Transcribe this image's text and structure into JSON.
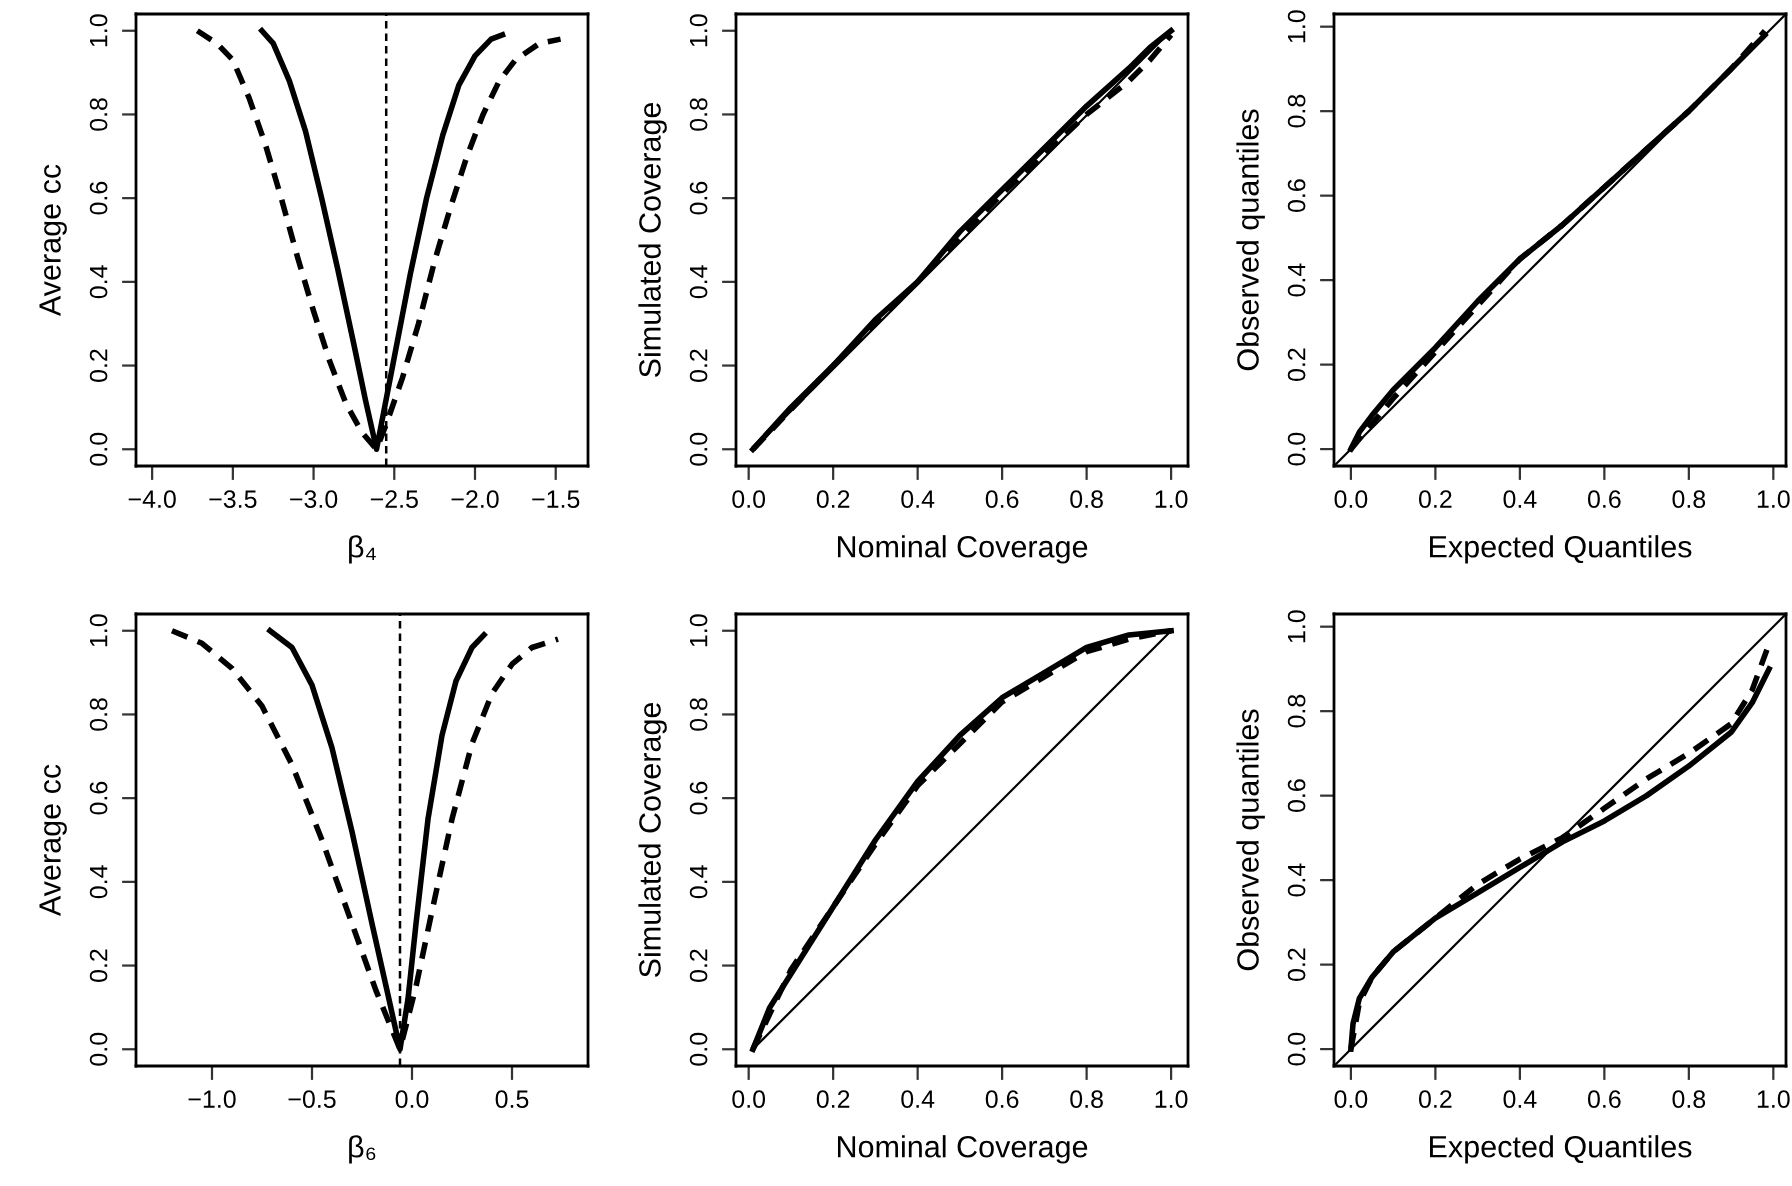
{
  "chart_data": [
    {
      "type": "line",
      "xlabel": "β₄",
      "ylabel": "Average cc",
      "xlim": [
        -4.1,
        -1.3
      ],
      "ylim": [
        -0.04,
        1.04
      ],
      "xticks": [
        {
          "value": -4.0,
          "label": "−4.0"
        },
        {
          "value": -3.5,
          "label": "−3.5"
        },
        {
          "value": -3.0,
          "label": "−3.0"
        },
        {
          "value": -2.5,
          "label": "−2.5"
        },
        {
          "value": -2.0,
          "label": "−2.0"
        },
        {
          "value": -1.5,
          "label": "−1.5"
        }
      ],
      "yticks": [
        {
          "value": 0,
          "label": "0.0"
        },
        {
          "value": 0.2,
          "label": "0.2"
        },
        {
          "value": 0.4,
          "label": "0.4"
        },
        {
          "value": 0.6,
          "label": "0.6"
        },
        {
          "value": 0.8,
          "label": "0.8"
        },
        {
          "value": 1,
          "label": "1.0"
        }
      ],
      "grid": false,
      "ref_lines": [
        {
          "axis": "x",
          "value": -2.55,
          "line_style": "dashed",
          "color": "#000000"
        }
      ],
      "series": [
        {
          "color": "#000000",
          "line_style": "solid",
          "x": [
            -3.32,
            -3.25,
            -3.15,
            -3.05,
            -2.95,
            -2.85,
            -2.75,
            -2.68,
            -2.61,
            -2.57,
            -2.5,
            -2.4,
            -2.3,
            -2.2,
            -2.1,
            -2.0,
            -1.9,
            -1.83
          ],
          "values": [
            1.0,
            0.97,
            0.88,
            0.76,
            0.6,
            0.43,
            0.25,
            0.12,
            0.0,
            0.08,
            0.22,
            0.42,
            0.6,
            0.75,
            0.87,
            0.94,
            0.98,
            0.99
          ]
        },
        {
          "color": "#000000",
          "line_style": "dashed",
          "x": [
            -3.72,
            -3.6,
            -3.5,
            -3.4,
            -3.3,
            -3.2,
            -3.1,
            -3.0,
            -2.9,
            -2.8,
            -2.7,
            -2.61,
            -2.55,
            -2.45,
            -2.35,
            -2.25,
            -2.15,
            -2.05,
            -1.95,
            -1.85,
            -1.75,
            -1.6,
            -1.47
          ],
          "values": [
            1.0,
            0.97,
            0.93,
            0.84,
            0.73,
            0.6,
            0.46,
            0.33,
            0.21,
            0.11,
            0.04,
            0.0,
            0.06,
            0.17,
            0.3,
            0.45,
            0.58,
            0.7,
            0.8,
            0.88,
            0.93,
            0.97,
            0.98
          ]
        }
      ]
    },
    {
      "type": "line",
      "xlabel": "Nominal Coverage",
      "ylabel": "Simulated Coverage",
      "xlim": [
        -0.03,
        1.04
      ],
      "ylim": [
        -0.04,
        1.04
      ],
      "xticks": [
        {
          "value": 0,
          "label": "0.0"
        },
        {
          "value": 0.2,
          "label": "0.2"
        },
        {
          "value": 0.4,
          "label": "0.4"
        },
        {
          "value": 0.6,
          "label": "0.6"
        },
        {
          "value": 0.8,
          "label": "0.8"
        },
        {
          "value": 1,
          "label": "1.0"
        }
      ],
      "yticks": [
        {
          "value": 0,
          "label": "0.0"
        },
        {
          "value": 0.2,
          "label": "0.2"
        },
        {
          "value": 0.4,
          "label": "0.4"
        },
        {
          "value": 0.6,
          "label": "0.6"
        },
        {
          "value": 0.8,
          "label": "0.8"
        },
        {
          "value": 1,
          "label": "1.0"
        }
      ],
      "grid": false,
      "series": [
        {
          "color": "#000000",
          "line_style": "solid",
          "x": [
            0.01,
            0.1,
            0.2,
            0.3,
            0.4,
            0.5,
            0.6,
            0.7,
            0.8,
            0.9,
            0.95,
            1.0
          ],
          "values": [
            0.0,
            0.1,
            0.2,
            0.31,
            0.4,
            0.52,
            0.62,
            0.72,
            0.82,
            0.91,
            0.96,
            1.0
          ]
        },
        {
          "color": "#000000",
          "line_style": "dashed",
          "x": [
            0.01,
            0.2,
            0.4,
            0.6,
            0.8,
            0.9,
            0.95,
            1.0
          ],
          "values": [
            0.0,
            0.2,
            0.4,
            0.61,
            0.8,
            0.88,
            0.93,
            0.99
          ]
        },
        {
          "color": "#000000",
          "line_style": "solid",
          "x": [
            0.01,
            1.0
          ],
          "values": [
            0.0,
            1.0
          ]
        }
      ]
    },
    {
      "type": "line",
      "xlabel": "Expected Quantiles",
      "ylabel": "Observed quantiles",
      "xlim": [
        -0.04,
        1.03
      ],
      "ylim": [
        -0.04,
        1.03
      ],
      "xticks": [
        {
          "value": 0,
          "label": "0.0"
        },
        {
          "value": 0.2,
          "label": "0.2"
        },
        {
          "value": 0.4,
          "label": "0.4"
        },
        {
          "value": 0.6,
          "label": "0.6"
        },
        {
          "value": 0.8,
          "label": "0.8"
        },
        {
          "value": 1,
          "label": "1.0"
        }
      ],
      "yticks": [
        {
          "value": 0,
          "label": "0.0"
        },
        {
          "value": 0.2,
          "label": "0.2"
        },
        {
          "value": 0.4,
          "label": "0.4"
        },
        {
          "value": 0.6,
          "label": "0.6"
        },
        {
          "value": 0.8,
          "label": "0.8"
        },
        {
          "value": 1,
          "label": "1.0"
        }
      ],
      "grid": false,
      "series": [
        {
          "color": "#000000",
          "line_style": "solid",
          "x": [
            0.0,
            0.02,
            0.05,
            0.1,
            0.2,
            0.3,
            0.4,
            0.5,
            0.6,
            0.7,
            0.8,
            0.9,
            0.98
          ],
          "values": [
            0.0,
            0.04,
            0.08,
            0.14,
            0.24,
            0.35,
            0.45,
            0.53,
            0.62,
            0.71,
            0.8,
            0.9,
            0.98
          ]
        },
        {
          "color": "#000000",
          "line_style": "dashed",
          "x": [
            0.0,
            0.05,
            0.1,
            0.2,
            0.3,
            0.4,
            0.5,
            0.6,
            0.7,
            0.8,
            0.9,
            0.98
          ],
          "values": [
            0.0,
            0.06,
            0.12,
            0.23,
            0.34,
            0.45,
            0.53,
            0.62,
            0.71,
            0.8,
            0.9,
            0.99
          ]
        },
        {
          "color": "#000000",
          "line_style": "solid",
          "x": [
            -0.04,
            1.03
          ],
          "values": [
            -0.04,
            1.03
          ]
        }
      ]
    },
    {
      "type": "line",
      "xlabel": "β₆",
      "ylabel": "Average cc",
      "xlim": [
        -1.38,
        0.88
      ],
      "ylim": [
        -0.04,
        1.04
      ],
      "xticks": [
        {
          "value": -1.0,
          "label": "−1.0"
        },
        {
          "value": -0.5,
          "label": "−0.5"
        },
        {
          "value": 0.0,
          "label": "0.0"
        },
        {
          "value": 0.5,
          "label": "0.5"
        }
      ],
      "yticks": [
        {
          "value": 0,
          "label": "0.0"
        },
        {
          "value": 0.2,
          "label": "0.2"
        },
        {
          "value": 0.4,
          "label": "0.4"
        },
        {
          "value": 0.6,
          "label": "0.6"
        },
        {
          "value": 0.8,
          "label": "0.8"
        },
        {
          "value": 1,
          "label": "1.0"
        }
      ],
      "grid": false,
      "ref_lines": [
        {
          "axis": "x",
          "value": -0.06,
          "line_style": "dashed",
          "color": "#000000"
        }
      ],
      "series": [
        {
          "color": "#000000",
          "line_style": "solid",
          "x": [
            -0.71,
            -0.6,
            -0.5,
            -0.4,
            -0.3,
            -0.2,
            -0.12,
            -0.06,
            -0.02,
            0.02,
            0.08,
            0.15,
            0.22,
            0.3,
            0.36
          ],
          "values": [
            1.0,
            0.96,
            0.87,
            0.72,
            0.52,
            0.3,
            0.13,
            0.0,
            0.12,
            0.3,
            0.55,
            0.75,
            0.88,
            0.96,
            0.99
          ]
        },
        {
          "color": "#000000",
          "line_style": "dashed",
          "x": [
            -1.2,
            -1.05,
            -0.9,
            -0.75,
            -0.6,
            -0.45,
            -0.3,
            -0.18,
            -0.06,
            0.02,
            0.1,
            0.2,
            0.3,
            0.4,
            0.5,
            0.6,
            0.73
          ],
          "values": [
            1.0,
            0.97,
            0.91,
            0.82,
            0.68,
            0.5,
            0.3,
            0.14,
            0.0,
            0.15,
            0.33,
            0.55,
            0.73,
            0.85,
            0.92,
            0.96,
            0.98
          ]
        }
      ]
    },
    {
      "type": "line",
      "xlabel": "Nominal Coverage",
      "ylabel": "Simulated Coverage",
      "xlim": [
        -0.03,
        1.04
      ],
      "ylim": [
        -0.04,
        1.04
      ],
      "xticks": [
        {
          "value": 0,
          "label": "0.0"
        },
        {
          "value": 0.2,
          "label": "0.2"
        },
        {
          "value": 0.4,
          "label": "0.4"
        },
        {
          "value": 0.6,
          "label": "0.6"
        },
        {
          "value": 0.8,
          "label": "0.8"
        },
        {
          "value": 1,
          "label": "1.0"
        }
      ],
      "yticks": [
        {
          "value": 0,
          "label": "0.0"
        },
        {
          "value": 0.2,
          "label": "0.2"
        },
        {
          "value": 0.4,
          "label": "0.4"
        },
        {
          "value": 0.6,
          "label": "0.6"
        },
        {
          "value": 0.8,
          "label": "0.8"
        },
        {
          "value": 1,
          "label": "1.0"
        }
      ],
      "grid": false,
      "series": [
        {
          "color": "#000000",
          "line_style": "solid",
          "x": [
            0.01,
            0.05,
            0.1,
            0.2,
            0.3,
            0.4,
            0.5,
            0.6,
            0.7,
            0.8,
            0.9,
            1.0
          ],
          "values": [
            0.0,
            0.1,
            0.18,
            0.34,
            0.5,
            0.64,
            0.75,
            0.84,
            0.9,
            0.96,
            0.99,
            1.0
          ]
        },
        {
          "color": "#000000",
          "line_style": "dashed",
          "x": [
            0.01,
            0.1,
            0.2,
            0.3,
            0.4,
            0.5,
            0.6,
            0.7,
            0.8,
            0.9,
            1.0
          ],
          "values": [
            0.0,
            0.19,
            0.34,
            0.49,
            0.63,
            0.73,
            0.83,
            0.89,
            0.95,
            0.98,
            1.0
          ]
        },
        {
          "color": "#000000",
          "line_style": "solid",
          "x": [
            0.01,
            1.0
          ],
          "values": [
            0.0,
            1.0
          ]
        }
      ]
    },
    {
      "type": "line",
      "xlabel": "Expected Quantiles",
      "ylabel": "Observed quantiles",
      "xlim": [
        -0.04,
        1.03
      ],
      "ylim": [
        -0.04,
        1.03
      ],
      "xticks": [
        {
          "value": 0,
          "label": "0.0"
        },
        {
          "value": 0.2,
          "label": "0.2"
        },
        {
          "value": 0.4,
          "label": "0.4"
        },
        {
          "value": 0.6,
          "label": "0.6"
        },
        {
          "value": 0.8,
          "label": "0.8"
        },
        {
          "value": 1,
          "label": "1.0"
        }
      ],
      "yticks": [
        {
          "value": 0,
          "label": "0.0"
        },
        {
          "value": 0.2,
          "label": "0.2"
        },
        {
          "value": 0.4,
          "label": "0.4"
        },
        {
          "value": 0.6,
          "label": "0.6"
        },
        {
          "value": 0.8,
          "label": "0.8"
        },
        {
          "value": 1,
          "label": "1.0"
        }
      ],
      "grid": false,
      "series": [
        {
          "color": "#000000",
          "line_style": "solid",
          "x": [
            0.0,
            0.005,
            0.02,
            0.05,
            0.1,
            0.2,
            0.3,
            0.4,
            0.5,
            0.6,
            0.7,
            0.8,
            0.9,
            0.95,
            0.99
          ],
          "values": [
            0.0,
            0.06,
            0.12,
            0.17,
            0.23,
            0.31,
            0.37,
            0.43,
            0.49,
            0.54,
            0.6,
            0.67,
            0.75,
            0.82,
            0.9
          ]
        },
        {
          "color": "#000000",
          "line_style": "dashed",
          "x": [
            0.0,
            0.02,
            0.05,
            0.1,
            0.2,
            0.3,
            0.4,
            0.5,
            0.6,
            0.7,
            0.8,
            0.9,
            0.95,
            0.99
          ],
          "values": [
            0.0,
            0.11,
            0.17,
            0.23,
            0.31,
            0.39,
            0.45,
            0.5,
            0.57,
            0.64,
            0.7,
            0.77,
            0.85,
            0.96
          ]
        },
        {
          "color": "#000000",
          "line_style": "solid",
          "x": [
            -0.04,
            1.03
          ],
          "values": [
            -0.04,
            1.03
          ]
        }
      ]
    }
  ]
}
